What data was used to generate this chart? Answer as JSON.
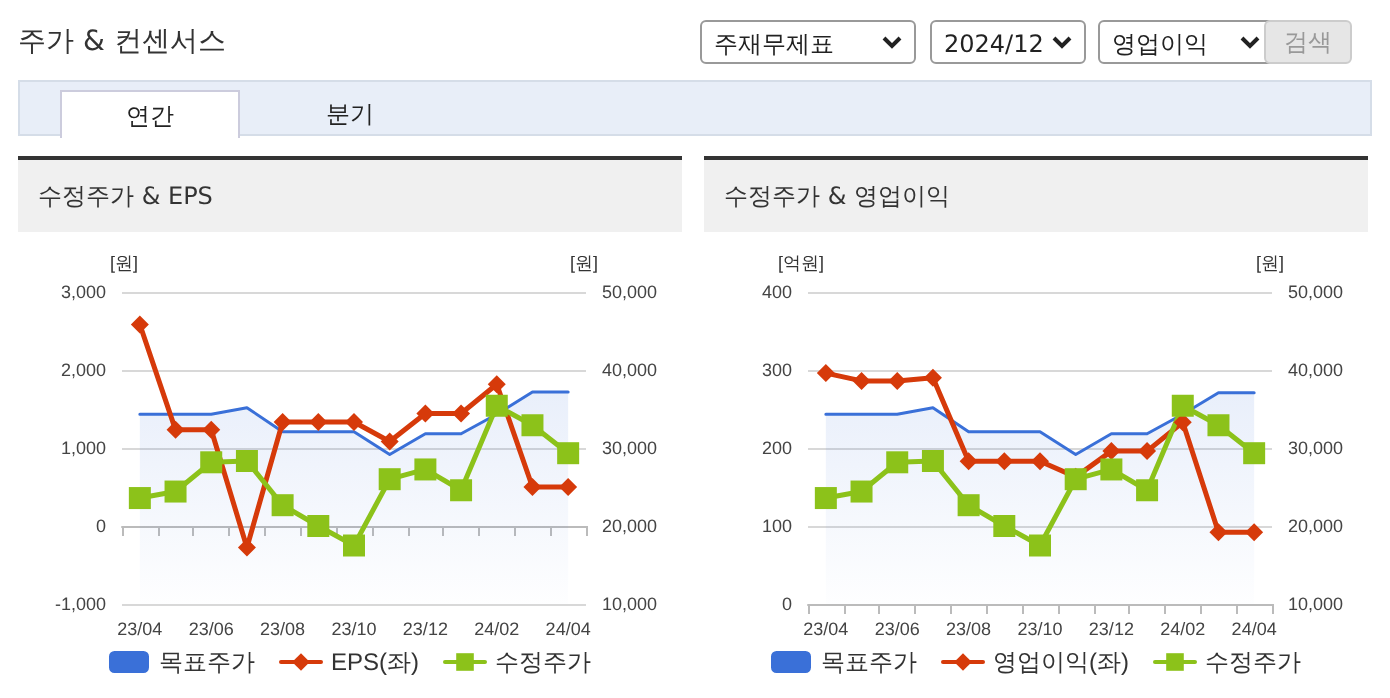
{
  "chart_data": [
    {
      "type": "other",
      "title": "주가 & 컨센서스",
      "annotations": [
        "주재무제표",
        "2024/12",
        "영업이익",
        "검색",
        "연간",
        "분기"
      ]
    },
    {
      "type": "line",
      "title": "수정주가 & EPS",
      "ylabel": "[원]",
      "y2label": "[원]",
      "categories": [
        "23/04",
        null,
        "23/06",
        null,
        "23/08",
        null,
        "23/10",
        null,
        "23/12",
        null,
        "24/02",
        null,
        "24/04"
      ],
      "series": [
        {
          "name": "목표주가",
          "type": "area",
          "axis": "y2",
          "color": "#3a70d8",
          "marker": "none",
          "values": [
            34333,
            34333,
            34333,
            35167,
            32083,
            32083,
            32083,
            29167,
            31833,
            31833,
            34333,
            37167,
            37167
          ]
        },
        {
          "name": "EPS(좌)",
          "color": "#d63a0a",
          "marker": "diamond",
          "values": [
            2583,
            1233,
            1233,
            -275,
            1333,
            1333,
            1333,
            1083,
            1442,
            1442,
            1817,
            500,
            500
          ]
        },
        {
          "name": "수정주가",
          "axis": "y2",
          "color": "#8cc21a",
          "marker": "square",
          "values": [
            23583,
            24417,
            28167,
            28333,
            22667,
            20000,
            17500,
            26000,
            27250,
            24583,
            35417,
            32917,
            29333
          ]
        }
      ],
      "ylim": [
        -1000,
        3000
      ],
      "yticks": [
        {
          "value": -1000,
          "label": "-1,000"
        },
        0,
        {
          "value": 1000,
          "label": "1,000"
        },
        {
          "value": 2000,
          "label": "2,000"
        },
        {
          "value": 3000,
          "label": "3,000"
        }
      ],
      "y2lim": [
        10000,
        50000
      ],
      "y2ticks": [
        {
          "value": 10000,
          "label": "10,000"
        },
        {
          "value": 20000,
          "label": "20,000"
        },
        {
          "value": 30000,
          "label": "30,000"
        },
        {
          "value": 40000,
          "label": "40,000"
        },
        {
          "value": 50000,
          "label": "50,000"
        }
      ],
      "grid": "y",
      "legend": "bottom"
    },
    {
      "type": "line",
      "title": "수정주가 & 영업이익",
      "ylabel": "[억원]",
      "y2label": "[원]",
      "categories": [
        "23/04",
        null,
        "23/06",
        null,
        "23/08",
        null,
        "23/10",
        null,
        "23/12",
        null,
        "24/02",
        null,
        "24/04"
      ],
      "series": [
        {
          "name": "목표주가",
          "type": "area",
          "axis": "y2",
          "color": "#3a70d8",
          "marker": "none",
          "values": [
            34333,
            34333,
            34333,
            35167,
            32083,
            32083,
            32083,
            29167,
            31833,
            31833,
            34333,
            37083,
            37083
          ]
        },
        {
          "name": "영업이익(좌)",
          "color": "#d63a0a",
          "marker": "diamond",
          "values": [
            296,
            286,
            286,
            290,
            183,
            183,
            183,
            163,
            196,
            196,
            233,
            92,
            92
          ]
        },
        {
          "name": "수정주가",
          "axis": "y2",
          "color": "#8cc21a",
          "marker": "square",
          "values": [
            23583,
            24417,
            28167,
            28333,
            22667,
            20000,
            17500,
            26000,
            27250,
            24583,
            35417,
            32917,
            29333
          ]
        }
      ],
      "ylim": [
        0,
        400
      ],
      "yticks": [
        0,
        100,
        200,
        300,
        400
      ],
      "y2lim": [
        10000,
        50000
      ],
      "y2ticks": [
        {
          "value": 10000,
          "label": "10,000"
        },
        {
          "value": 20000,
          "label": "20,000"
        },
        {
          "value": 30000,
          "label": "30,000"
        },
        {
          "value": 40000,
          "label": "40,000"
        },
        {
          "value": 50000,
          "label": "50,000"
        }
      ],
      "grid": "y",
      "legend": "bottom"
    }
  ]
}
